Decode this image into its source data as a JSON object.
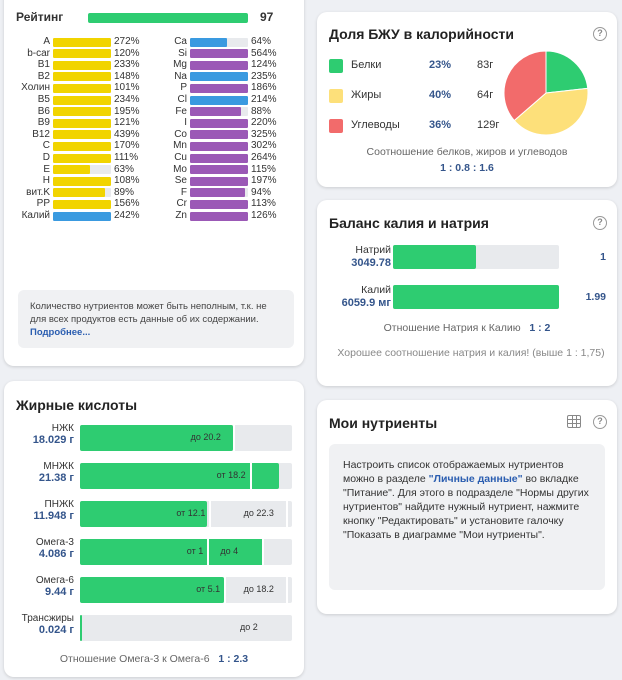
{
  "rating": {
    "label": "Рейтинг",
    "value": "97",
    "fill_fraction": 0.97,
    "left_column": [
      {
        "name": "A",
        "pct": "272%",
        "fill": 1.0,
        "color": "#f1d400"
      },
      {
        "name": "b-car",
        "pct": "120%",
        "fill": 1.0,
        "color": "#f1d400"
      },
      {
        "name": "B1",
        "pct": "233%",
        "fill": 1.0,
        "color": "#f1d400"
      },
      {
        "name": "B2",
        "pct": "148%",
        "fill": 1.0,
        "color": "#f1d400"
      },
      {
        "name": "Холин",
        "pct": "101%",
        "fill": 1.0,
        "color": "#f1d400"
      },
      {
        "name": "B5",
        "pct": "234%",
        "fill": 1.0,
        "color": "#f1d400"
      },
      {
        "name": "B6",
        "pct": "195%",
        "fill": 1.0,
        "color": "#f1d400"
      },
      {
        "name": "B9",
        "pct": "121%",
        "fill": 1.0,
        "color": "#f1d400"
      },
      {
        "name": "B12",
        "pct": "439%",
        "fill": 1.0,
        "color": "#f1d400"
      },
      {
        "name": "C",
        "pct": "170%",
        "fill": 1.0,
        "color": "#f1d400"
      },
      {
        "name": "D",
        "pct": "111%",
        "fill": 1.0,
        "color": "#f1d400"
      },
      {
        "name": "E",
        "pct": "63%",
        "fill": 0.63,
        "color": "#f1d400"
      },
      {
        "name": "H",
        "pct": "108%",
        "fill": 1.0,
        "color": "#f1d400"
      },
      {
        "name": "вит.K",
        "pct": "89%",
        "fill": 0.89,
        "color": "#f1d400"
      },
      {
        "name": "PP",
        "pct": "156%",
        "fill": 1.0,
        "color": "#f1d400"
      },
      {
        "name": "Калий",
        "pct": "242%",
        "fill": 1.0,
        "color": "#3a9ae0"
      }
    ],
    "right_column": [
      {
        "name": "Ca",
        "pct": "64%",
        "fill": 0.64,
        "color": "#3a9ae0"
      },
      {
        "name": "Si",
        "pct": "564%",
        "fill": 1.0,
        "color": "#9b59b6"
      },
      {
        "name": "Mg",
        "pct": "124%",
        "fill": 1.0,
        "color": "#9b59b6"
      },
      {
        "name": "Na",
        "pct": "235%",
        "fill": 1.0,
        "color": "#3a9ae0"
      },
      {
        "name": "P",
        "pct": "186%",
        "fill": 1.0,
        "color": "#9b59b6"
      },
      {
        "name": "Cl",
        "pct": "214%",
        "fill": 1.0,
        "color": "#3a9ae0"
      },
      {
        "name": "Fe",
        "pct": "88%",
        "fill": 0.88,
        "color": "#9b59b6"
      },
      {
        "name": "I",
        "pct": "220%",
        "fill": 1.0,
        "color": "#9b59b6"
      },
      {
        "name": "Co",
        "pct": "325%",
        "fill": 1.0,
        "color": "#9b59b6"
      },
      {
        "name": "Mn",
        "pct": "302%",
        "fill": 1.0,
        "color": "#9b59b6"
      },
      {
        "name": "Cu",
        "pct": "264%",
        "fill": 1.0,
        "color": "#9b59b6"
      },
      {
        "name": "Mo",
        "pct": "115%",
        "fill": 1.0,
        "color": "#9b59b6"
      },
      {
        "name": "Se",
        "pct": "197%",
        "fill": 1.0,
        "color": "#9b59b6"
      },
      {
        "name": "F",
        "pct": "94%",
        "fill": 0.94,
        "color": "#9b59b6"
      },
      {
        "name": "Cr",
        "pct": "113%",
        "fill": 1.0,
        "color": "#9b59b6"
      },
      {
        "name": "Zn",
        "pct": "126%",
        "fill": 1.0,
        "color": "#9b59b6"
      }
    ],
    "note_text": "Количество нутриентов может быть неполным, т.к. не для всех продуктов есть данные об их содержании.",
    "note_link": "Подробнее..."
  },
  "bju": {
    "title": "Доля БЖУ в калорийности",
    "rows": [
      {
        "name": "Белки",
        "pct": "23%",
        "grams": "83г",
        "color": "#2ecc71",
        "share": 23
      },
      {
        "name": "Жиры",
        "pct": "40%",
        "grams": "64г",
        "color": "#fde07a",
        "share": 40
      },
      {
        "name": "Углеводы",
        "pct": "36%",
        "grams": "129г",
        "color": "#f26b6b",
        "share": 36
      }
    ],
    "caption": "Соотношение белков, жиров и углеводов",
    "ratio": "1 : 0.8 : 1.6"
  },
  "kna": {
    "title": "Баланс калия и натрия",
    "rows": [
      {
        "name": "Натрий",
        "value": "3049.78",
        "ratio": "1",
        "fill": 0.5
      },
      {
        "name": "Калий",
        "value": "6059.9 мг",
        "ratio": "1.99",
        "fill": 1.0
      }
    ],
    "ratio_label": "Отношение Натрия к Калию",
    "ratio_value": "1 : 2",
    "good_text": "Хорошее соотношение натрия и калия! (выше 1 : 1,75)"
  },
  "fatty": {
    "title": "Жирные кислоты",
    "rows": [
      {
        "name": "НЖК",
        "value": "18.029 г",
        "fill": 0.72,
        "lo": "",
        "hi": "до 20.2",
        "mark_lo": null,
        "mark_hi": 0.72
      },
      {
        "name": "МНЖК",
        "value": "21.38 г",
        "fill": 0.94,
        "lo": "",
        "hi": "от 18.2",
        "mark_lo": 0.8,
        "mark_hi": null
      },
      {
        "name": "ПНЖК",
        "value": "11.948 г",
        "fill": 0.6,
        "lo": "от 12.1",
        "hi": "до 22.3",
        "mark_lo": 0.61,
        "mark_hi": 0.97
      },
      {
        "name": "Омега-3",
        "value": "4.086 г",
        "fill": 0.87,
        "lo": "от 1",
        "hi": "до 4",
        "mark_lo": 0.6,
        "mark_hi": 0.86
      },
      {
        "name": "Омега-6",
        "value": "9.44 г",
        "fill": 0.68,
        "lo": "от 5.1",
        "hi": "до 18.2",
        "mark_lo": 0.68,
        "mark_hi": 0.97
      },
      {
        "name": "Трансжиры",
        "value": "0.024 г",
        "fill": 0.01,
        "lo": "",
        "hi": "до 2",
        "mark_lo": null,
        "mark_hi": null
      }
    ],
    "ratio_label": "Отношение Омега-3 к Омега-6",
    "ratio_value": "1 : 2.3"
  },
  "my": {
    "title": "Мои нутриенты",
    "text_1": "Настроить список отображаемых нутриентов можно в разделе",
    "link": "\"Личные данные\"",
    "text_2": "во вкладке \"Питание\". Для этого в подразделе \"Нормы других нутриентов\" найдите нужный нутриент, нажмите кнопку \"Редактировать\" и установите галочку \"Показать в диаграмме \"Мои нутриенты\"."
  },
  "icons": [
    "help-icon",
    "table-icon"
  ]
}
